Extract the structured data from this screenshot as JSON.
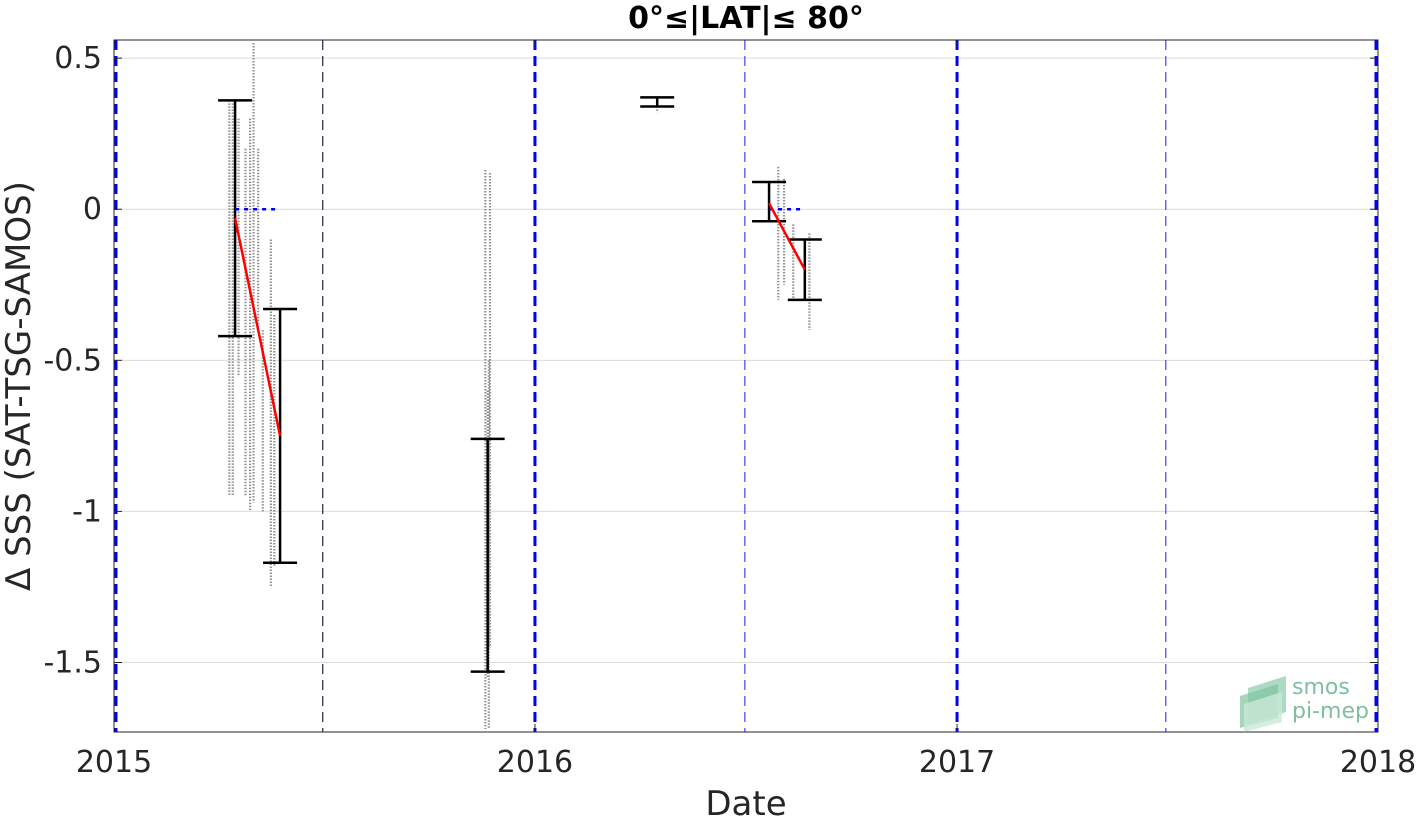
{
  "chart_data": {
    "type": "scatter",
    "title": "0°≤|LAT|≤ 80°",
    "xlabel": "Date",
    "ylabel": "Δ SSS (SAT-TSG-SAMOS)",
    "xlim": [
      "2015-01-01",
      "2018-01-01"
    ],
    "ylim": [
      -1.73,
      0.56
    ],
    "x_ticks": [
      {
        "date": "2015-01-01",
        "label": "2015"
      },
      {
        "date": "2016-01-01",
        "label": "2016"
      },
      {
        "date": "2017-01-01",
        "label": "2017"
      },
      {
        "date": "2018-01-01",
        "label": "2018"
      }
    ],
    "y_ticks": [
      {
        "value": 0.5,
        "label": "0.5"
      },
      {
        "value": 0,
        "label": "0"
      },
      {
        "value": -0.5,
        "label": "-0.5"
      },
      {
        "value": -1,
        "label": "-1"
      },
      {
        "value": -1.5,
        "label": "-1.5"
      }
    ],
    "grid": true,
    "colors": {
      "points": "#808080",
      "errorbar": "#000000",
      "trend": "#ff0000",
      "zero_ref": "#0000ff",
      "year_line": "#0000ff",
      "half_year_line": "#4040ff"
    },
    "year_lines": [
      "2015-01-01",
      "2016-01-01",
      "2017-01-01",
      "2018-01-01"
    ],
    "half_year_lines": [
      "2015-07-01",
      "2016-07-01",
      "2017-07-01"
    ],
    "error_bars": [
      {
        "x": "2015-04-16",
        "mean": -0.03,
        "low": -0.42,
        "high": 0.36
      },
      {
        "x": "2015-05-25",
        "mean": -0.75,
        "low": -1.17,
        "high": -0.33
      },
      {
        "x": "2015-11-21",
        "mean": -1.15,
        "low": -1.53,
        "high": -0.76
      },
      {
        "x": "2016-04-16",
        "mean": 0.36,
        "low": 0.34,
        "high": 0.37
      },
      {
        "x": "2016-07-22",
        "mean": 0.02,
        "low": -0.04,
        "high": 0.09
      },
      {
        "x": "2016-08-22",
        "mean": -0.2,
        "low": -0.3,
        "high": -0.1
      }
    ],
    "trend_lines": [
      {
        "x": [
          "2015-04-16",
          "2015-05-25"
        ],
        "y": [
          -0.03,
          -0.75
        ]
      },
      {
        "x": [
          "2016-07-22",
          "2016-08-22"
        ],
        "y": [
          0.02,
          -0.2
        ]
      }
    ],
    "zero_reference_lines": [
      {
        "x": [
          "2015-04-16",
          "2015-05-25"
        ],
        "y": [
          0,
          0
        ]
      },
      {
        "x": [
          "2016-07-22",
          "2016-08-22"
        ],
        "y": [
          0,
          0
        ]
      }
    ],
    "point_columns": [
      {
        "x": "2015-04-11",
        "min": -0.95,
        "max": 0.36
      },
      {
        "x": "2015-04-14",
        "min": -0.95,
        "max": 0.36
      },
      {
        "x": "2015-04-19",
        "min": -0.55,
        "max": 0.3
      },
      {
        "x": "2015-04-25",
        "min": -0.95,
        "max": 0.2
      },
      {
        "x": "2015-04-29",
        "min": -1.0,
        "max": 0.3
      },
      {
        "x": "2015-05-02",
        "min": -0.97,
        "max": 0.55
      },
      {
        "x": "2015-05-06",
        "min": -0.4,
        "max": 0.2
      },
      {
        "x": "2015-05-10",
        "min": -1.0,
        "max": -0.4
      },
      {
        "x": "2015-05-17",
        "min": -1.25,
        "max": -0.1
      },
      {
        "x": "2015-05-20",
        "min": -1.18,
        "max": -0.35
      },
      {
        "x": "2015-11-19",
        "min": -1.72,
        "max": 0.13
      },
      {
        "x": "2015-11-21",
        "min": -1.55,
        "max": -0.6
      },
      {
        "x": "2015-11-22",
        "min": -1.72,
        "max": -0.5
      },
      {
        "x": "2015-11-23",
        "min": -1.45,
        "max": 0.12
      },
      {
        "x": "2016-04-16",
        "min": 0.32,
        "max": 0.37
      },
      {
        "x": "2016-07-30",
        "min": -0.3,
        "max": 0.14
      },
      {
        "x": "2016-08-04",
        "min": -0.25,
        "max": 0.1
      },
      {
        "x": "2016-08-12",
        "min": -0.3,
        "max": -0.05
      },
      {
        "x": "2016-08-26",
        "min": -0.4,
        "max": -0.08
      }
    ]
  },
  "logo": {
    "line1": "smos",
    "line2": "pi-mep"
  }
}
